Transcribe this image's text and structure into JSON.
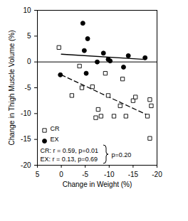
{
  "chart_data": {
    "type": "scatter",
    "x_label": "Change in Weight (%)",
    "y_label": "Change in Thigh Muscle Volume (%)",
    "xlim": [
      5,
      -20
    ],
    "xticks": [
      5,
      0,
      -5,
      -10,
      -15,
      -20
    ],
    "ylim": [
      -20,
      10
    ],
    "yticks": [
      10,
      5,
      0,
      -5,
      -10,
      -15,
      -20
    ],
    "hline": 0,
    "legend": "bottom-left",
    "series": [
      {
        "name": "CR",
        "color": "#000000",
        "marker": "open_square",
        "line_style": "dashed",
        "x": [
          0.5,
          -2.2,
          -3.8,
          -4.3,
          -6.5,
          -7.2,
          -7.7,
          -8.3,
          -9.2,
          -9.8,
          -11,
          -12.3,
          -12.8,
          -13.5,
          -15,
          -15.5,
          -18.5,
          -18.8,
          -18.5,
          -18
        ],
        "values": [
          2.8,
          -6.5,
          -0.8,
          -5,
          -4.8,
          -10.8,
          -9.2,
          -10.5,
          -2.2,
          -6.5,
          -10.5,
          -8.5,
          -3.3,
          -10.5,
          -7.5,
          -6.8,
          -7.3,
          -8.5,
          -14.8,
          -10.5
        ],
        "fit": {
          "x": [
            0,
            -18.5
          ],
          "y": [
            -2.5,
            -10.5
          ]
        }
      },
      {
        "name": "EX",
        "color": "#000000",
        "marker": "circle",
        "line_style": "solid",
        "x": [
          0.2,
          -4.5,
          -5.5,
          -4.8,
          -5.2,
          -7.5,
          -8.8,
          -9.8,
          -10.2,
          -13,
          -14,
          -17.5
        ],
        "values": [
          -2.5,
          7.5,
          4.5,
          2.2,
          -2.2,
          0,
          1.7,
          0.5,
          0.2,
          -1,
          1.2,
          0.8
        ],
        "fit": {
          "x": [
            0,
            -17.5
          ],
          "y": [
            1.5,
            0.5
          ]
        }
      }
    ],
    "annotations": [
      "CR: r = 0.59, p=0.01",
      "EX: r = 0.13, p=0.69",
      "p=0.20"
    ]
  }
}
